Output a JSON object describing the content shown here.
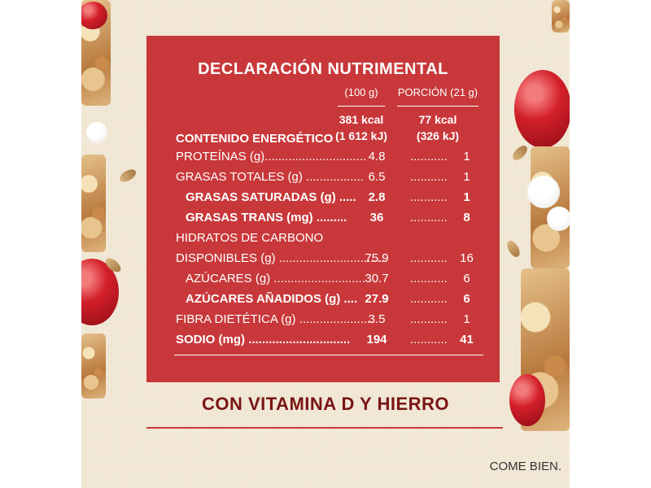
{
  "label": {
    "title": "DECLARACIÓN NUTRIMENTAL",
    "col_100g": "(100 g)",
    "col_portion": "PORCIÓN (21 g)",
    "energy_label": "CONTENIDO ENERGÉTICO",
    "energy_100g_kcal": "381 kcal",
    "energy_100g_kj": "(1 612 kJ)",
    "energy_portion_kcal": "77 kcal",
    "energy_portion_kj": "(326 kJ)",
    "rows": [
      {
        "name": "PROTEÍNAS (g)..............................",
        "v100": "4.8",
        "dots": "...........",
        "vpor": "1"
      },
      {
        "name": "GRASAS TOTALES (g) .................",
        "v100": "6.5",
        "dots": "...........",
        "vpor": "1"
      },
      {
        "name": "GRASAS SATURADAS (g) .....",
        "v100": "2.8",
        "dots": "...........",
        "vpor": "1"
      },
      {
        "name": "GRASAS TRANS (mg) .........",
        "v100": "36",
        "dots": "...........",
        "vpor": "8"
      },
      {
        "name": "HIDRATOS DE CARBONO",
        "v100": "",
        "dots": "",
        "vpor": ""
      },
      {
        "name": "DISPONIBLES (g) ................................",
        "v100": "75.9",
        "dots": "...........",
        "vpor": "16"
      },
      {
        "name": "AZÚCARES (g) ...........................",
        "v100": "30.7",
        "dots": "...........",
        "vpor": "6"
      },
      {
        "name": "AZÚCARES AÑADIDOS (g) ....",
        "v100": "27.9",
        "dots": "...........",
        "vpor": "6"
      },
      {
        "name": "FIBRA DIETÉTICA (g) ......................",
        "v100": "3.5",
        "dots": "...........",
        "vpor": "1"
      },
      {
        "name": "SODIO (mg) ..............................",
        "v100": "194",
        "dots": "...........",
        "vpor": "41"
      }
    ]
  },
  "tagline": "CON VITAMINA D Y HIERRO",
  "brand_slogan": "COME BIEN.",
  "colors": {
    "label_red": "#c8383a",
    "tagline_red": "#7a1414",
    "background_cream": "#f2e8d6"
  }
}
